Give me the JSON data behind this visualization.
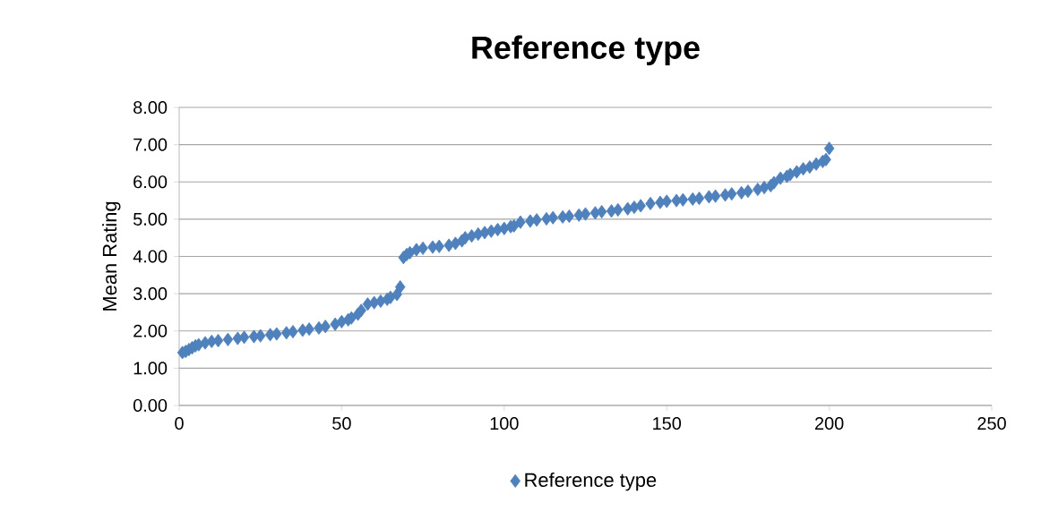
{
  "chart_data": {
    "type": "scatter",
    "title": "Reference type",
    "ylabel": "Mean Rating",
    "x": [
      1,
      2,
      3,
      4,
      5,
      6,
      8,
      10,
      12,
      15,
      18,
      20,
      23,
      25,
      28,
      30,
      33,
      35,
      38,
      40,
      43,
      45,
      48,
      50,
      52,
      53,
      55,
      56,
      58,
      60,
      62,
      64,
      65,
      67,
      68,
      69,
      70,
      71,
      73,
      75,
      78,
      80,
      83,
      85,
      87,
      88,
      90,
      92,
      94,
      96,
      98,
      100,
      102,
      103,
      105,
      108,
      110,
      113,
      115,
      118,
      120,
      123,
      125,
      128,
      130,
      133,
      135,
      138,
      140,
      142,
      145,
      148,
      150,
      153,
      155,
      158,
      160,
      163,
      165,
      168,
      170,
      173,
      175,
      178,
      180,
      182,
      183,
      185,
      187,
      188,
      190,
      192,
      194,
      196,
      198,
      199,
      200
    ],
    "series": [
      {
        "name": "Reference type",
        "color": "#4f81bd",
        "values": [
          1.42,
          1.45,
          1.5,
          1.55,
          1.6,
          1.63,
          1.68,
          1.72,
          1.74,
          1.77,
          1.8,
          1.83,
          1.85,
          1.87,
          1.9,
          1.92,
          1.95,
          1.98,
          2.02,
          2.05,
          2.08,
          2.12,
          2.18,
          2.25,
          2.3,
          2.35,
          2.45,
          2.55,
          2.72,
          2.76,
          2.8,
          2.85,
          2.9,
          2.98,
          3.18,
          3.97,
          4.05,
          4.1,
          4.18,
          4.22,
          4.25,
          4.27,
          4.3,
          4.35,
          4.42,
          4.5,
          4.55,
          4.6,
          4.64,
          4.68,
          4.72,
          4.75,
          4.8,
          4.82,
          4.92,
          4.95,
          4.98,
          5.01,
          5.04,
          5.06,
          5.08,
          5.11,
          5.14,
          5.17,
          5.2,
          5.22,
          5.25,
          5.28,
          5.32,
          5.36,
          5.42,
          5.45,
          5.48,
          5.5,
          5.52,
          5.54,
          5.56,
          5.6,
          5.62,
          5.65,
          5.68,
          5.71,
          5.75,
          5.8,
          5.85,
          5.9,
          5.98,
          6.1,
          6.15,
          6.2,
          6.27,
          6.35,
          6.4,
          6.48,
          6.55,
          6.6,
          6.9
        ]
      }
    ],
    "xlim": [
      0,
      250
    ],
    "xticks": [
      0,
      50,
      100,
      150,
      200,
      250
    ],
    "ylim": [
      0,
      8
    ],
    "yticks": [
      {
        "value": 0,
        "label": "0.00"
      },
      {
        "value": 1,
        "label": "1.00"
      },
      {
        "value": 2,
        "label": "2.00"
      },
      {
        "value": 3,
        "label": "3.00"
      },
      {
        "value": 4,
        "label": "4.00"
      },
      {
        "value": 5,
        "label": "5.00"
      },
      {
        "value": 6,
        "label": "6.00"
      },
      {
        "value": 7,
        "label": "7.00"
      },
      {
        "value": 8,
        "label": "8.00"
      }
    ],
    "grid": "y",
    "legend": "bottom",
    "marker": "diamond"
  }
}
